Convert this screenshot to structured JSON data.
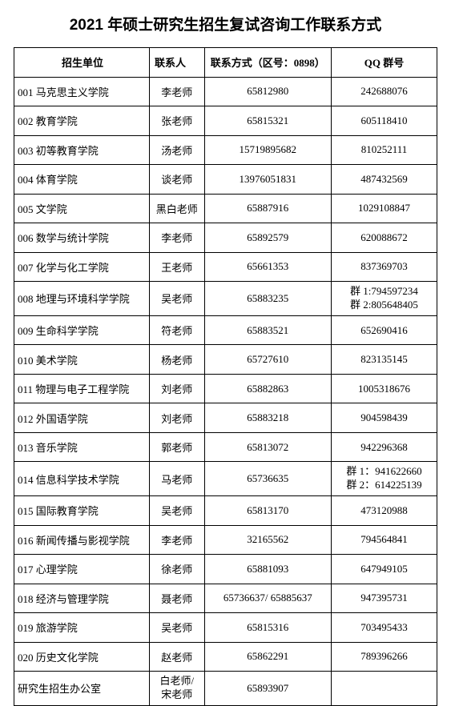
{
  "page": {
    "title": "2021 年硕士研究生招生复试咨询工作联系方式",
    "background_color": "#ffffff",
    "text_color": "#000000",
    "border_color": "#000000"
  },
  "table": {
    "headers": {
      "unit": "招生单位",
      "contact": "联系人",
      "phone": "联系方式（区号：0898）",
      "qq": "QQ 群号"
    },
    "rows": [
      {
        "unit": "001 马克思主义学院",
        "contact": "李老师",
        "phone": "65812980",
        "qq": "242688076"
      },
      {
        "unit": "002 教育学院",
        "contact": "张老师",
        "phone": "65815321",
        "qq": "605118410"
      },
      {
        "unit": "003 初等教育学院",
        "contact": "汤老师",
        "phone": "15719895682",
        "qq": "810252111"
      },
      {
        "unit": "004 体育学院",
        "contact": "谈老师",
        "phone": "13976051831",
        "qq": "487432569"
      },
      {
        "unit": "005 文学院",
        "contact": "黑白老师",
        "phone": "65887916",
        "qq": "1029108847"
      },
      {
        "unit": "006 数学与统计学院",
        "contact": "李老师",
        "phone": "65892579",
        "qq": "620088672"
      },
      {
        "unit": "007 化学与化工学院",
        "contact": "王老师",
        "phone": "65661353",
        "qq": "837369703"
      },
      {
        "unit": "008 地理与环境科学学院",
        "contact": "吴老师",
        "phone": "65883235",
        "qq": "群 1:794597234\n群 2:805648405"
      },
      {
        "unit": "009 生命科学学院",
        "contact": "符老师",
        "phone": "65883521",
        "qq": "652690416"
      },
      {
        "unit": "010 美术学院",
        "contact": "杨老师",
        "phone": "65727610",
        "qq": "823135145"
      },
      {
        "unit": "011 物理与电子工程学院",
        "contact": "刘老师",
        "phone": "65882863",
        "qq": "1005318676"
      },
      {
        "unit": "012 外国语学院",
        "contact": "刘老师",
        "phone": "65883218",
        "qq": "904598439"
      },
      {
        "unit": "013 音乐学院",
        "contact": "郭老师",
        "phone": "65813072",
        "qq": "942296368"
      },
      {
        "unit": "014 信息科学技术学院",
        "contact": "马老师",
        "phone": "65736635",
        "qq": "群 1：941622660\n群 2：614225139"
      },
      {
        "unit": "015 国际教育学院",
        "contact": "吴老师",
        "phone": "65813170",
        "qq": "473120988"
      },
      {
        "unit": "016 新闻传播与影视学院",
        "contact": "李老师",
        "phone": "32165562",
        "qq": "794564841"
      },
      {
        "unit": "017 心理学院",
        "contact": "徐老师",
        "phone": "65881093",
        "qq": "647949105"
      },
      {
        "unit": "018 经济与管理学院",
        "contact": "聂老师",
        "phone": "65736637/ 65885637",
        "qq": "947395731"
      },
      {
        "unit": "019 旅游学院",
        "contact": "吴老师",
        "phone": "65815316",
        "qq": "703495433"
      },
      {
        "unit": "020 历史文化学院",
        "contact": "赵老师",
        "phone": "65862291",
        "qq": "789396266"
      },
      {
        "unit": "研究生招生办公室",
        "contact": "白老师/宋老师",
        "phone": "65893907",
        "qq": ""
      }
    ]
  }
}
